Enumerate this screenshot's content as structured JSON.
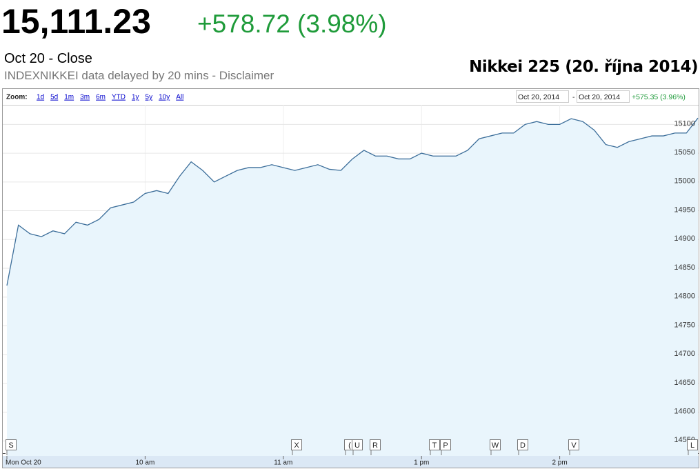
{
  "header": {
    "price": "15,111.23",
    "change": "+578.72 (3.98%)",
    "date": "Oct 20 - Close",
    "disclaimer": "INDEXNIKKEI data delayed by 20 mins - Disclaimer",
    "caption": "Nikkei 225 (20. října 2014)"
  },
  "toolbar": {
    "zoom_label": "Zoom:",
    "zoom_options": [
      "1d",
      "5d",
      "1m",
      "3m",
      "6m",
      "YTD",
      "1y",
      "5y",
      "10y",
      "All"
    ],
    "range_start": "Oct 20, 2014",
    "range_separator": "-",
    "range_end": "Oct 20, 2014",
    "range_change": "+575.35 (3.96%)"
  },
  "chart_data": {
    "type": "area",
    "categories": [
      "Mon Oct 20",
      null,
      null,
      null,
      null,
      null,
      null,
      null,
      null,
      null,
      null,
      null,
      "10 am",
      null,
      null,
      null,
      null,
      null,
      null,
      null,
      null,
      null,
      null,
      null,
      "11 am",
      null,
      null,
      null,
      null,
      null,
      null,
      null,
      null,
      null,
      null,
      null,
      "1 pm",
      null,
      null,
      null,
      null,
      null,
      null,
      null,
      null,
      null,
      null,
      null,
      "2 pm",
      null,
      null,
      null,
      null,
      null,
      null,
      null,
      null,
      null,
      null,
      null,
      null
    ],
    "values": [
      14820,
      14925,
      14910,
      14905,
      14915,
      14910,
      14930,
      14925,
      14935,
      14955,
      14960,
      14965,
      14980,
      14985,
      14980,
      15010,
      15035,
      15020,
      15000,
      15010,
      15020,
      15025,
      15025,
      15030,
      15025,
      15020,
      15025,
      15030,
      15022,
      15020,
      15040,
      15055,
      15045,
      15045,
      15040,
      15040,
      15050,
      15045,
      15045,
      15045,
      15055,
      15075,
      15080,
      15085,
      15085,
      15100,
      15105,
      15100,
      15100,
      15110,
      15105,
      15090,
      15065,
      15060,
      15070,
      15075,
      15080,
      15080,
      15085,
      15085,
      15111
    ],
    "color": "#3c6e9a",
    "fill_color": "#e9f5fc",
    "ylim": [
      14524,
      15134
    ],
    "yticks": [
      14550,
      14600,
      14650,
      14700,
      14750,
      14800,
      14850,
      14900,
      14950,
      15000,
      15050,
      15100
    ],
    "grid": true
  },
  "flags": [
    "S",
    "X",
    "(",
    "U",
    "R",
    "T",
    "P",
    "W",
    "D",
    "V",
    "L"
  ]
}
